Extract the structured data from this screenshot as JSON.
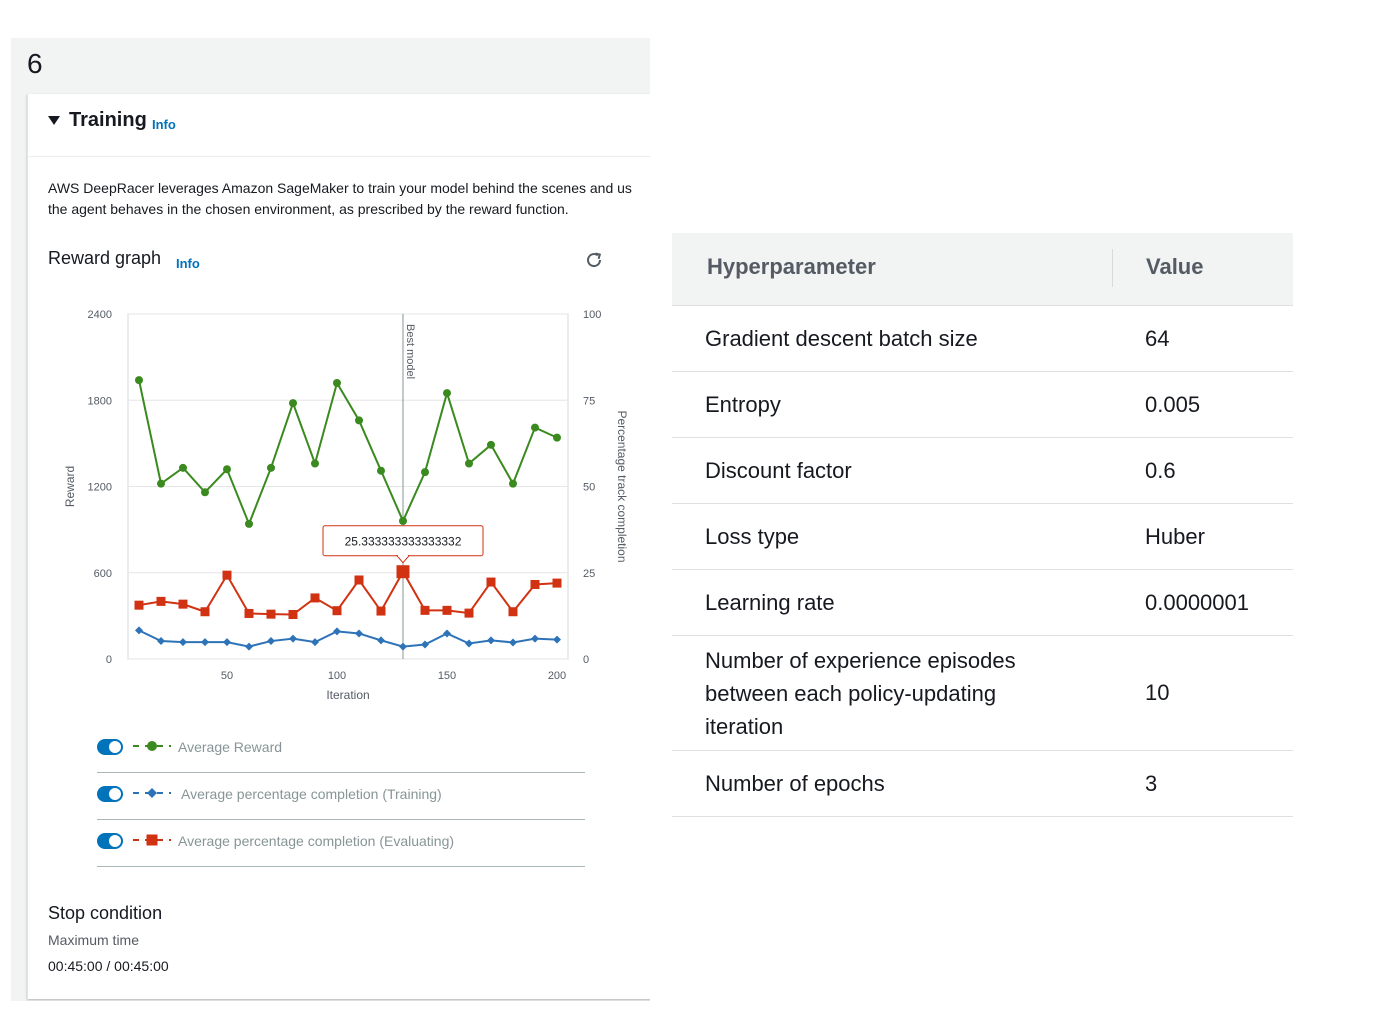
{
  "step_number": "6",
  "section": {
    "title": "Training",
    "info_label": "Info"
  },
  "description": {
    "line1": "AWS DeepRacer leverages Amazon SageMaker to train your model behind the scenes and us",
    "line2": "the agent behaves in the chosen environment, as prescribed by the reward function."
  },
  "reward_graph": {
    "title": "Reward graph",
    "info_label": "Info",
    "refresh_icon": "refresh-icon"
  },
  "chart_data": {
    "type": "line",
    "xlabel": "Iteration",
    "ylabel": "Reward",
    "y2label": "Percentage track completion",
    "xlim": [
      5,
      205
    ],
    "ylim": [
      0,
      2400
    ],
    "y2lim": [
      0,
      100
    ],
    "x_ticks": [
      50,
      100,
      150,
      200
    ],
    "y_ticks": [
      0,
      600,
      1200,
      1800,
      2400
    ],
    "y2_ticks": [
      0,
      25,
      50,
      75,
      100
    ],
    "x": [
      10,
      20,
      30,
      40,
      50,
      60,
      70,
      80,
      90,
      100,
      110,
      120,
      130,
      140,
      150,
      160,
      170,
      180,
      190,
      200
    ],
    "series": [
      {
        "name": "Average Reward",
        "axis": "left",
        "color": "#3a8a1f",
        "marker": "circle",
        "values": [
          1940,
          1220,
          1330,
          1160,
          1320,
          940,
          1330,
          1780,
          1360,
          1920,
          1660,
          1310,
          960,
          1300,
          1850,
          1360,
          1490,
          1220,
          1610,
          1540
        ]
      },
      {
        "name": "Average percentage completion (Training)",
        "axis": "right",
        "color": "#2e73b8",
        "marker": "diamond",
        "values": [
          8.3,
          5.2,
          4.9,
          4.9,
          4.9,
          3.6,
          5.2,
          5.9,
          4.9,
          8.0,
          7.4,
          5.4,
          3.6,
          4.2,
          7.4,
          4.5,
          5.4,
          4.8,
          5.9,
          5.6
        ]
      },
      {
        "name": "Average percentage completion (Evaluating)",
        "axis": "right",
        "color": "#d13212",
        "marker": "square",
        "values": [
          15.6,
          16.7,
          15.9,
          13.7,
          24.3,
          13.2,
          13.0,
          12.9,
          17.7,
          14.0,
          22.9,
          13.9,
          25.3,
          14.1,
          14.1,
          13.3,
          22.3,
          13.7,
          21.6,
          22.0
        ]
      }
    ],
    "best_model": {
      "x": 130,
      "label": "Best model"
    },
    "tooltip": {
      "series": 2,
      "index": 12,
      "text": "25.333333333333332"
    },
    "grid": true
  },
  "legend": [
    {
      "label": "Average Reward",
      "color": "#3a8a1f",
      "marker": "circle"
    },
    {
      "label": "Average percentage completion (Training)",
      "color": "#2e73b8",
      "marker": "diamond"
    },
    {
      "label": "Average percentage completion (Evaluating)",
      "color": "#d13212",
      "marker": "square"
    }
  ],
  "stop_condition": {
    "title": "Stop condition",
    "label": "Maximum time",
    "value": "00:45:00 / 00:45:00"
  },
  "hyperparameters": {
    "header_name": "Hyperparameter",
    "header_value": "Value",
    "rows": [
      {
        "name": "Gradient descent batch size",
        "value": "64"
      },
      {
        "name": "Entropy",
        "value": "0.005"
      },
      {
        "name": "Discount factor",
        "value": "0.6"
      },
      {
        "name": "Loss type",
        "value": "Huber"
      },
      {
        "name": "Learning rate",
        "value": "0.0000001"
      },
      {
        "name": "Number of experience episodes between each policy-updating iteration",
        "value": "10"
      },
      {
        "name": "Number of epochs",
        "value": "3"
      }
    ]
  },
  "colors": {
    "accent": "#0073bb",
    "panel_bg": "#f2f3f3"
  }
}
